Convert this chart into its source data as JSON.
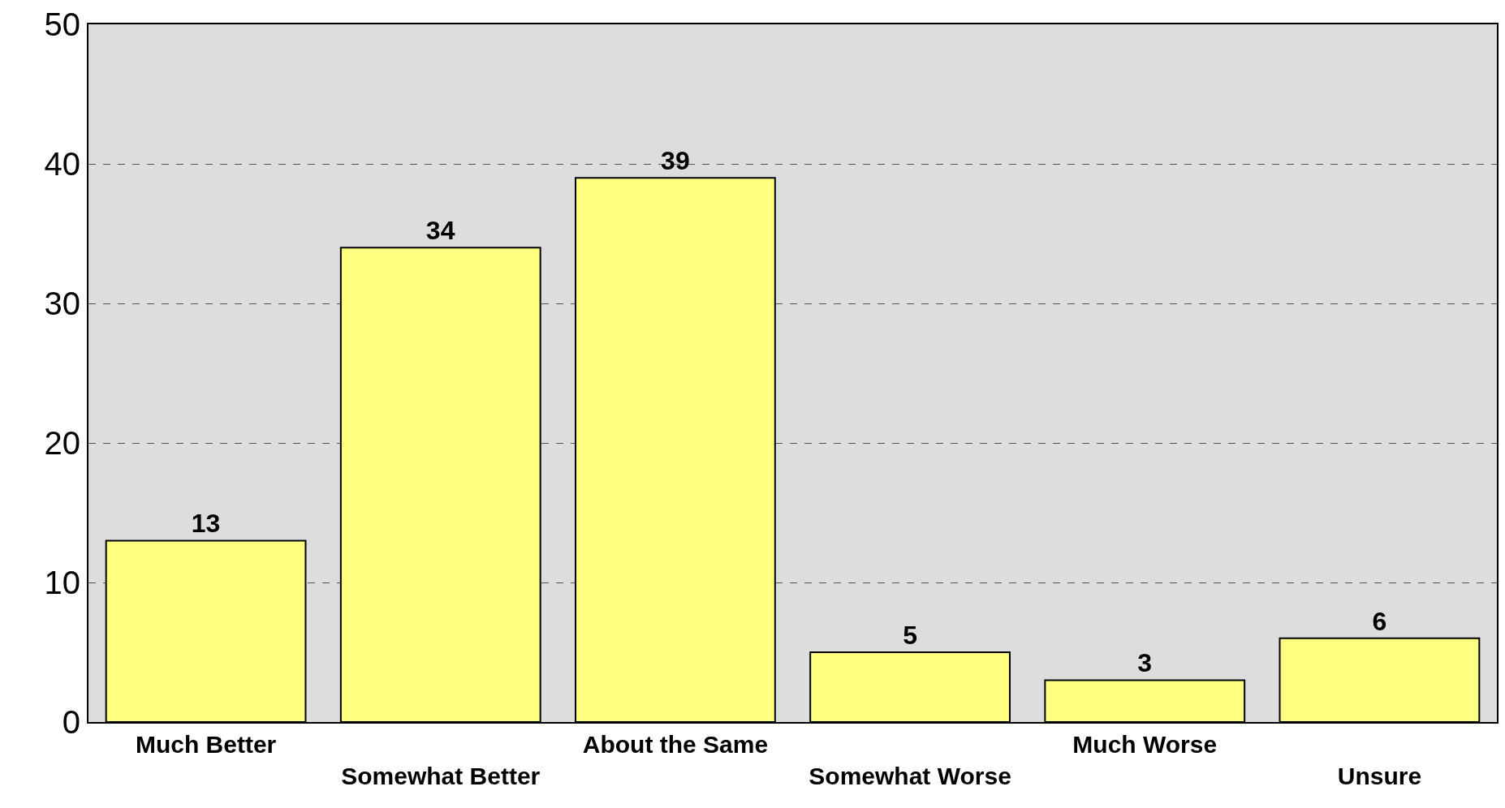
{
  "chart_data": {
    "type": "bar",
    "categories": [
      "Much Better",
      "Somewhat Better",
      "About the Same",
      "Somewhat Worse",
      "Much Worse",
      "Unsure"
    ],
    "values": [
      13,
      34,
      39,
      5,
      3,
      6
    ],
    "color": "#ffff80",
    "ylim": [
      0,
      50
    ],
    "yticks": [
      0,
      10,
      20,
      30,
      40,
      50
    ],
    "grid": "y",
    "data_labels": true
  }
}
